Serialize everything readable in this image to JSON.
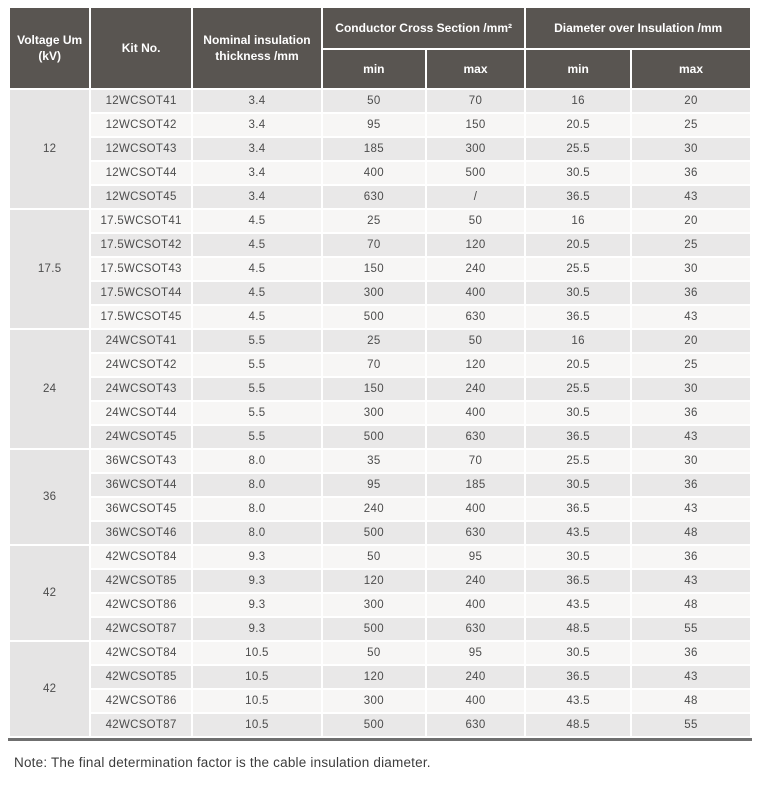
{
  "colors": {
    "header_bg": "#595551",
    "header_text": "#ffffff",
    "row_odd_bg": "#e9e8e8",
    "row_even_bg": "#f7f6f5",
    "voltage_cell_bg": "#e5e4e4",
    "body_text": "#4c4c4c",
    "bottom_bar": "#6f6f6f"
  },
  "table": {
    "headers": {
      "voltage": "Voltage Um (kV)",
      "kit_no": "Kit No.",
      "nominal_insulation": "Nominal insulation thickness /mm",
      "conductor_cross_section": "Conductor Cross Section /mm²",
      "diameter_over_insulation": "Diameter over Insulation /mm",
      "min": "min",
      "max": "max"
    },
    "groups": [
      {
        "voltage": "12",
        "rows": [
          {
            "kit": "12WCSOT41",
            "thickness": "3.4",
            "ccs_min": "50",
            "ccs_max": "70",
            "doi_min": "16",
            "doi_max": "20"
          },
          {
            "kit": "12WCSOT42",
            "thickness": "3.4",
            "ccs_min": "95",
            "ccs_max": "150",
            "doi_min": "20.5",
            "doi_max": "25"
          },
          {
            "kit": "12WCSOT43",
            "thickness": "3.4",
            "ccs_min": "185",
            "ccs_max": "300",
            "doi_min": "25.5",
            "doi_max": "30"
          },
          {
            "kit": "12WCSOT44",
            "thickness": "3.4",
            "ccs_min": "400",
            "ccs_max": "500",
            "doi_min": "30.5",
            "doi_max": "36"
          },
          {
            "kit": "12WCSOT45",
            "thickness": "3.4",
            "ccs_min": "630",
            "ccs_max": "/",
            "doi_min": "36.5",
            "doi_max": "43"
          }
        ]
      },
      {
        "voltage": "17.5",
        "rows": [
          {
            "kit": "17.5WCSOT41",
            "thickness": "4.5",
            "ccs_min": "25",
            "ccs_max": "50",
            "doi_min": "16",
            "doi_max": "20"
          },
          {
            "kit": "17.5WCSOT42",
            "thickness": "4.5",
            "ccs_min": "70",
            "ccs_max": "120",
            "doi_min": "20.5",
            "doi_max": "25"
          },
          {
            "kit": "17.5WCSOT43",
            "thickness": "4.5",
            "ccs_min": "150",
            "ccs_max": "240",
            "doi_min": "25.5",
            "doi_max": "30"
          },
          {
            "kit": "17.5WCSOT44",
            "thickness": "4.5",
            "ccs_min": "300",
            "ccs_max": "400",
            "doi_min": "30.5",
            "doi_max": "36"
          },
          {
            "kit": "17.5WCSOT45",
            "thickness": "4.5",
            "ccs_min": "500",
            "ccs_max": "630",
            "doi_min": "36.5",
            "doi_max": "43"
          }
        ]
      },
      {
        "voltage": "24",
        "rows": [
          {
            "kit": "24WCSOT41",
            "thickness": "5.5",
            "ccs_min": "25",
            "ccs_max": "50",
            "doi_min": "16",
            "doi_max": "20"
          },
          {
            "kit": "24WCSOT42",
            "thickness": "5.5",
            "ccs_min": "70",
            "ccs_max": "120",
            "doi_min": "20.5",
            "doi_max": "25"
          },
          {
            "kit": "24WCSOT43",
            "thickness": "5.5",
            "ccs_min": "150",
            "ccs_max": "240",
            "doi_min": "25.5",
            "doi_max": "30"
          },
          {
            "kit": "24WCSOT44",
            "thickness": "5.5",
            "ccs_min": "300",
            "ccs_max": "400",
            "doi_min": "30.5",
            "doi_max": "36"
          },
          {
            "kit": "24WCSOT45",
            "thickness": "5.5",
            "ccs_min": "500",
            "ccs_max": "630",
            "doi_min": "36.5",
            "doi_max": "43"
          }
        ]
      },
      {
        "voltage": "36",
        "rows": [
          {
            "kit": "36WCSOT43",
            "thickness": "8.0",
            "ccs_min": "35",
            "ccs_max": "70",
            "doi_min": "25.5",
            "doi_max": "30"
          },
          {
            "kit": "36WCSOT44",
            "thickness": "8.0",
            "ccs_min": "95",
            "ccs_max": "185",
            "doi_min": "30.5",
            "doi_max": "36"
          },
          {
            "kit": "36WCSOT45",
            "thickness": "8.0",
            "ccs_min": "240",
            "ccs_max": "400",
            "doi_min": "36.5",
            "doi_max": "43"
          },
          {
            "kit": "36WCSOT46",
            "thickness": "8.0",
            "ccs_min": "500",
            "ccs_max": "630",
            "doi_min": "43.5",
            "doi_max": "48"
          }
        ]
      },
      {
        "voltage": "42",
        "rows": [
          {
            "kit": "42WCSOT84",
            "thickness": "9.3",
            "ccs_min": "50",
            "ccs_max": "95",
            "doi_min": "30.5",
            "doi_max": "36"
          },
          {
            "kit": "42WCSOT85",
            "thickness": "9.3",
            "ccs_min": "120",
            "ccs_max": "240",
            "doi_min": "36.5",
            "doi_max": "43"
          },
          {
            "kit": "42WCSOT86",
            "thickness": "9.3",
            "ccs_min": "300",
            "ccs_max": "400",
            "doi_min": "43.5",
            "doi_max": "48"
          },
          {
            "kit": "42WCSOT87",
            "thickness": "9.3",
            "ccs_min": "500",
            "ccs_max": "630",
            "doi_min": "48.5",
            "doi_max": "55"
          }
        ]
      },
      {
        "voltage": "42",
        "rows": [
          {
            "kit": "42WCSOT84",
            "thickness": "10.5",
            "ccs_min": "50",
            "ccs_max": "95",
            "doi_min": "30.5",
            "doi_max": "36"
          },
          {
            "kit": "42WCSOT85",
            "thickness": "10.5",
            "ccs_min": "120",
            "ccs_max": "240",
            "doi_min": "36.5",
            "doi_max": "43"
          },
          {
            "kit": "42WCSOT86",
            "thickness": "10.5",
            "ccs_min": "300",
            "ccs_max": "400",
            "doi_min": "43.5",
            "doi_max": "48"
          },
          {
            "kit": "42WCSOT87",
            "thickness": "10.5",
            "ccs_min": "500",
            "ccs_max": "630",
            "doi_min": "48.5",
            "doi_max": "55"
          }
        ]
      }
    ]
  },
  "note": "Note: The final determination factor is the cable insulation diameter."
}
